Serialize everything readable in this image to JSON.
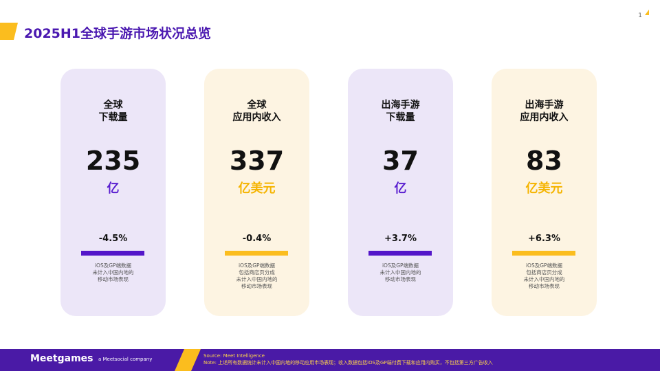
{
  "header": {
    "title": "2025H1全球手游市场状况总览",
    "page_number": "1"
  },
  "cards": [
    {
      "title": [
        "全球",
        "下载量"
      ],
      "value": "235",
      "unit": "亿",
      "change": "-4.5%",
      "notes": [
        "iOS及GP端数据",
        "未计入中国内地的",
        "移动市场表现"
      ]
    },
    {
      "title": [
        "全球",
        "应用内收入"
      ],
      "value": "337",
      "unit": "亿美元",
      "change": "-0.4%",
      "notes": [
        "iOS及GP端数据",
        "包括商店页分成",
        "未计入中国内地的",
        "移动市场表现"
      ]
    },
    {
      "title": [
        "出海手游",
        "下载量"
      ],
      "value": "37",
      "unit": "亿",
      "change": "+3.7%",
      "notes": [
        "iOS及GP端数据",
        "未计入中国内地的",
        "移动市场表现"
      ]
    },
    {
      "title": [
        "出海手游",
        "应用内收入"
      ],
      "value": "83",
      "unit": "亿美元",
      "change": "+6.3%",
      "notes": [
        "iOS及GP端数据",
        "包括商店页分成",
        "未计入中国内地的",
        "移动市场表现"
      ]
    }
  ],
  "footer": {
    "logo": "Meetgames",
    "tagline": "a Meetsocial company",
    "source": "Source: Meet Intelligence",
    "note": "Note: 上述所有数据统计未计入中国内地的移动应用市场表现；收入数据包括iOS及GP端付费下载和应用内购买，不包括第三方广告收入"
  }
}
